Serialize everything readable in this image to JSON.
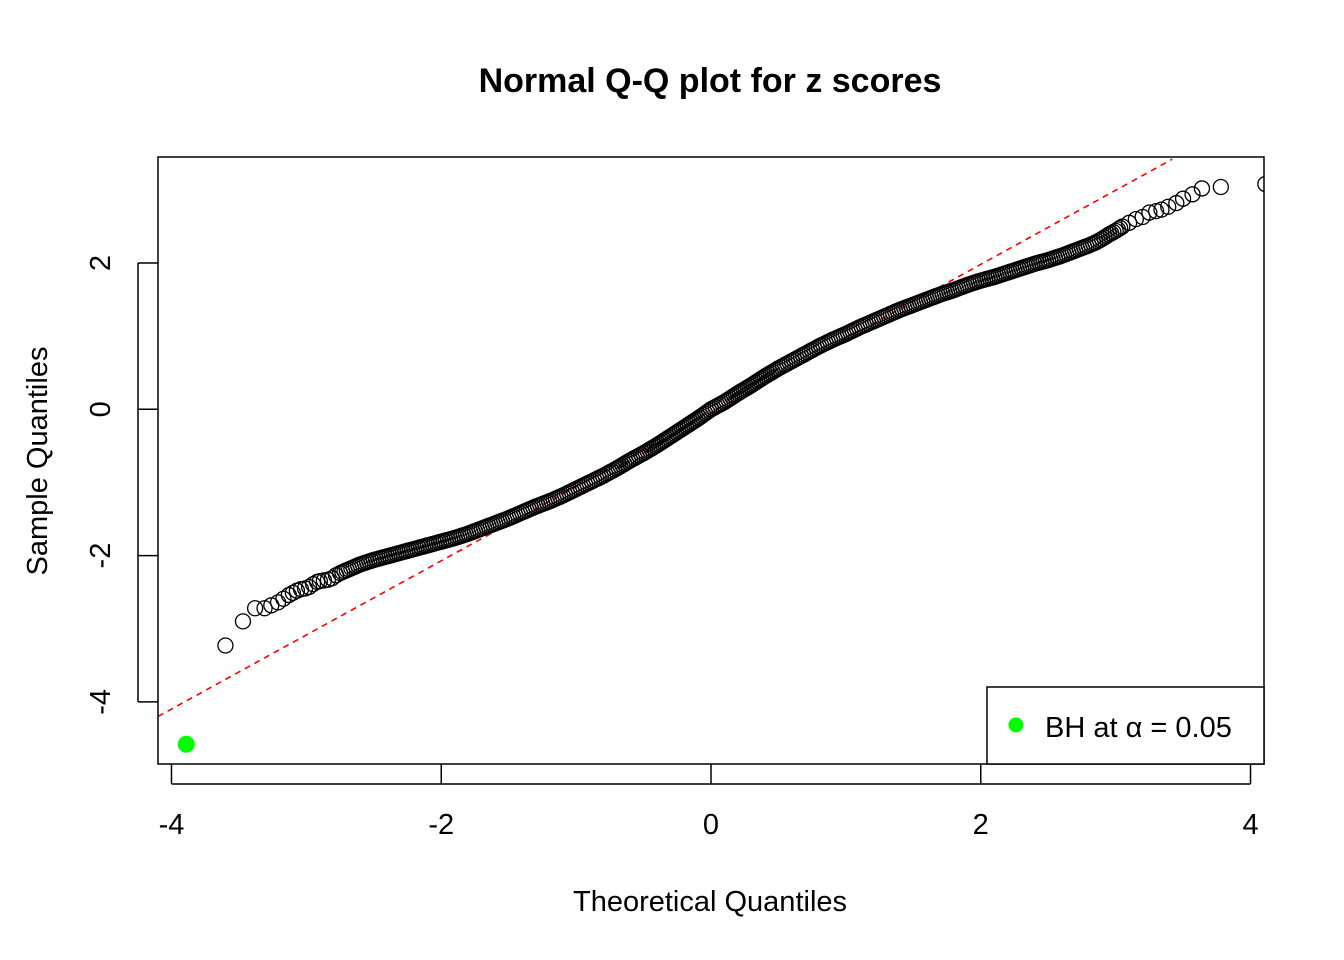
{
  "chart_data": {
    "type": "scatter",
    "title": "Normal Q-Q plot for z scores",
    "xlabel": "Theoretical Quantiles",
    "ylabel": "Sample Quantiles",
    "xlim": [
      -4.1,
      4.1
    ],
    "ylim": [
      -4.85,
      3.45
    ],
    "x_ticks": [
      -4,
      -2,
      0,
      2,
      4
    ],
    "x_tick_labels": [
      "-4",
      "-2",
      "0",
      "2",
      "4"
    ],
    "y_ticks": [
      -4,
      -2,
      0,
      2
    ],
    "y_tick_labels": [
      "-4",
      "-2",
      "0",
      "2"
    ],
    "grid": false,
    "legend_position": "bottom-right",
    "legend": [
      {
        "label": "BH at α = 0.05",
        "color": "#00ff00",
        "marker": "filled-circle"
      }
    ],
    "reference_line": {
      "style": "dashed",
      "color": "#ff0000",
      "points": [
        [
          -4.1,
          -4.2
        ],
        [
          3.42,
          3.42
        ]
      ]
    },
    "series": [
      {
        "marker": "open-circle",
        "color": "#000000",
        "points": [
          [
            -3.6,
            -3.23
          ],
          [
            -3.47,
            -2.9
          ],
          [
            -3.38,
            -2.72
          ],
          [
            -3.31,
            -2.72
          ],
          [
            -3.26,
            -2.68
          ],
          [
            -3.21,
            -2.64
          ],
          [
            -3.17,
            -2.59
          ],
          [
            -3.13,
            -2.54
          ],
          [
            -3.1,
            -2.51
          ],
          [
            -3.07,
            -2.48
          ],
          [
            -3.04,
            -2.46
          ],
          [
            -3.01,
            -2.45
          ],
          [
            -2.98,
            -2.43
          ],
          [
            -2.95,
            -2.39
          ],
          [
            -2.92,
            -2.36
          ],
          [
            -2.9,
            -2.35
          ],
          [
            -2.87,
            -2.34
          ],
          [
            -2.84,
            -2.33
          ],
          [
            -2.81,
            -2.31
          ],
          [
            -2.78,
            -2.27
          ],
          [
            -2.75,
            -2.24
          ],
          [
            -2.7,
            -2.2
          ],
          [
            -2.65,
            -2.16
          ],
          [
            -2.6,
            -2.12
          ],
          [
            -2.5,
            -2.06
          ],
          [
            -2.4,
            -2.01
          ],
          [
            -2.3,
            -1.96
          ],
          [
            -2.2,
            -1.91
          ],
          [
            -2.1,
            -1.86
          ],
          [
            -2.0,
            -1.81
          ],
          [
            -1.9,
            -1.76
          ],
          [
            -1.8,
            -1.7
          ],
          [
            -1.7,
            -1.63
          ],
          [
            -1.6,
            -1.56
          ],
          [
            -1.5,
            -1.49
          ],
          [
            -1.4,
            -1.41
          ],
          [
            -1.3,
            -1.33
          ],
          [
            -1.2,
            -1.26
          ],
          [
            -1.1,
            -1.18
          ],
          [
            -1.0,
            -1.09
          ],
          [
            -0.9,
            -1.0
          ],
          [
            -0.8,
            -0.91
          ],
          [
            -0.7,
            -0.81
          ],
          [
            -0.6,
            -0.7
          ],
          [
            -0.5,
            -0.6
          ],
          [
            -0.4,
            -0.49
          ],
          [
            -0.3,
            -0.37
          ],
          [
            -0.2,
            -0.25
          ],
          [
            -0.1,
            -0.13
          ],
          [
            0.0,
            0.0
          ],
          [
            0.1,
            0.1
          ],
          [
            0.2,
            0.22
          ],
          [
            0.3,
            0.33
          ],
          [
            0.4,
            0.45
          ],
          [
            0.5,
            0.56
          ],
          [
            0.6,
            0.66
          ],
          [
            0.7,
            0.76
          ],
          [
            0.8,
            0.86
          ],
          [
            0.9,
            0.95
          ],
          [
            1.0,
            1.03
          ],
          [
            1.1,
            1.12
          ],
          [
            1.2,
            1.2
          ],
          [
            1.3,
            1.28
          ],
          [
            1.4,
            1.36
          ],
          [
            1.5,
            1.43
          ],
          [
            1.6,
            1.5
          ],
          [
            1.7,
            1.57
          ],
          [
            1.8,
            1.63
          ],
          [
            1.9,
            1.7
          ],
          [
            2.0,
            1.76
          ],
          [
            2.1,
            1.81
          ],
          [
            2.2,
            1.87
          ],
          [
            2.3,
            1.93
          ],
          [
            2.4,
            1.99
          ],
          [
            2.5,
            2.04
          ],
          [
            2.6,
            2.1
          ],
          [
            2.7,
            2.17
          ],
          [
            2.8,
            2.24
          ],
          [
            2.85,
            2.28
          ],
          [
            2.9,
            2.33
          ],
          [
            2.95,
            2.39
          ],
          [
            3.0,
            2.44
          ],
          [
            3.05,
            2.5
          ],
          [
            3.1,
            2.55
          ],
          [
            3.15,
            2.6
          ],
          [
            3.2,
            2.63
          ],
          [
            3.25,
            2.69
          ],
          [
            3.3,
            2.71
          ],
          [
            3.34,
            2.73
          ],
          [
            3.39,
            2.77
          ],
          [
            3.45,
            2.82
          ],
          [
            3.5,
            2.88
          ],
          [
            3.57,
            2.94
          ],
          [
            3.64,
            3.02
          ],
          [
            3.78,
            3.04
          ],
          [
            4.11,
            3.08
          ]
        ]
      },
      {
        "name": "BH at α = 0.05",
        "marker": "filled-circle",
        "color": "#00ff00",
        "points": [
          [
            -3.89,
            -4.58
          ]
        ]
      }
    ]
  }
}
